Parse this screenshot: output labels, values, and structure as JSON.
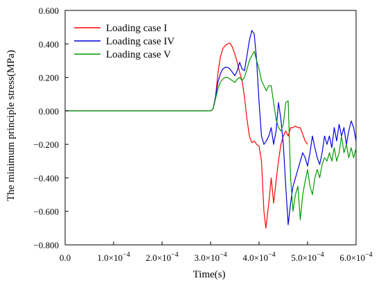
{
  "chart_data": {
    "type": "line",
    "title": "",
    "xlabel": "Time(s)",
    "ylabel": "The minimum principle stress(MPa)",
    "xlim": [
      0,
      0.0006
    ],
    "ylim": [
      -0.8,
      0.6
    ],
    "xticks": [
      {
        "value": 0.0,
        "label": "0.0"
      },
      {
        "value": 0.0001,
        "label": "1.0×10",
        "exp": "−4"
      },
      {
        "value": 0.0002,
        "label": "2.0×10",
        "exp": "−4"
      },
      {
        "value": 0.0003,
        "label": "3.0×10",
        "exp": "−4"
      },
      {
        "value": 0.0004,
        "label": "4.0×10",
        "exp": "−4"
      },
      {
        "value": 0.0005,
        "label": "5.0×10",
        "exp": "−4"
      },
      {
        "value": 0.0006,
        "label": "6.0×10",
        "exp": "−4"
      }
    ],
    "yticks": [
      {
        "value": 0.6,
        "label": "0.600"
      },
      {
        "value": 0.4,
        "label": "0.400"
      },
      {
        "value": 0.2,
        "label": "0.200"
      },
      {
        "value": 0.0,
        "label": "0.000"
      },
      {
        "value": -0.2,
        "label": "−0.200"
      },
      {
        "value": -0.4,
        "label": "−0.400"
      },
      {
        "value": -0.6,
        "label": "−0.600"
      },
      {
        "value": -0.8,
        "label": "−0.800"
      }
    ],
    "grid": false,
    "legend": "top-left",
    "series": [
      {
        "name": "Loading case I",
        "color": "#ff0000",
        "points": [
          [
            0.0,
            0.0
          ],
          [
            0.0003,
            0.0
          ],
          [
            0.000305,
            0.01
          ],
          [
            0.00031,
            0.08
          ],
          [
            0.000315,
            0.22
          ],
          [
            0.00032,
            0.32
          ],
          [
            0.000325,
            0.37
          ],
          [
            0.00033,
            0.39
          ],
          [
            0.000335,
            0.4
          ],
          [
            0.00034,
            0.405
          ],
          [
            0.000345,
            0.38
          ],
          [
            0.00035,
            0.34
          ],
          [
            0.000355,
            0.29
          ],
          [
            0.00036,
            0.23
          ],
          [
            0.000365,
            0.18
          ],
          [
            0.00037,
            0.08
          ],
          [
            0.000375,
            -0.05
          ],
          [
            0.00038,
            -0.15
          ],
          [
            0.000385,
            -0.19
          ],
          [
            0.00039,
            -0.18
          ],
          [
            0.000395,
            -0.2
          ],
          [
            0.0004,
            -0.21
          ],
          [
            0.000405,
            -0.3
          ],
          [
            0.00041,
            -0.6
          ],
          [
            0.000414,
            -0.7
          ],
          [
            0.00042,
            -0.55
          ],
          [
            0.000425,
            -0.4
          ],
          [
            0.00043,
            -0.55
          ],
          [
            0.000435,
            -0.42
          ],
          [
            0.00044,
            -0.3
          ],
          [
            0.000445,
            -0.2
          ],
          [
            0.00045,
            -0.15
          ],
          [
            0.000455,
            -0.12
          ],
          [
            0.00046,
            -0.15
          ],
          [
            0.000465,
            -0.1
          ],
          [
            0.00047,
            -0.1
          ],
          [
            0.000475,
            -0.09
          ],
          [
            0.00048,
            -0.1
          ],
          [
            0.000485,
            -0.1
          ],
          [
            0.00049,
            -0.14
          ],
          [
            0.000495,
            -0.18
          ],
          [
            0.0005,
            -0.2
          ]
        ]
      },
      {
        "name": "Loading case IV",
        "color": "#0000dd",
        "points": [
          [
            0.0,
            0.0
          ],
          [
            0.0003,
            0.0
          ],
          [
            0.000305,
            0.01
          ],
          [
            0.00031,
            0.08
          ],
          [
            0.000315,
            0.17
          ],
          [
            0.00032,
            0.22
          ],
          [
            0.000325,
            0.25
          ],
          [
            0.00033,
            0.26
          ],
          [
            0.000335,
            0.26
          ],
          [
            0.00034,
            0.25
          ],
          [
            0.000345,
            0.23
          ],
          [
            0.00035,
            0.21
          ],
          [
            0.000355,
            0.24
          ],
          [
            0.00036,
            0.29
          ],
          [
            0.000365,
            0.25
          ],
          [
            0.00037,
            0.24
          ],
          [
            0.000375,
            0.33
          ],
          [
            0.00038,
            0.42
          ],
          [
            0.000385,
            0.48
          ],
          [
            0.00039,
            0.46
          ],
          [
            0.000395,
            0.3
          ],
          [
            0.0004,
            0.05
          ],
          [
            0.000405,
            -0.15
          ],
          [
            0.00041,
            -0.2
          ],
          [
            0.000415,
            -0.18
          ],
          [
            0.00042,
            -0.15
          ],
          [
            0.000425,
            -0.1
          ],
          [
            0.00043,
            -0.2
          ],
          [
            0.000435,
            -0.12
          ],
          [
            0.00044,
            0.05
          ],
          [
            0.000445,
            -0.05
          ],
          [
            0.00045,
            -0.2
          ],
          [
            0.000455,
            -0.45
          ],
          [
            0.00046,
            -0.68
          ],
          [
            0.000465,
            -0.55
          ],
          [
            0.00047,
            -0.45
          ],
          [
            0.000475,
            -0.4
          ],
          [
            0.00048,
            -0.35
          ],
          [
            0.000485,
            -0.3
          ],
          [
            0.00049,
            -0.25
          ],
          [
            0.000495,
            -0.28
          ],
          [
            0.0005,
            -0.33
          ],
          [
            0.000505,
            -0.25
          ],
          [
            0.00051,
            -0.15
          ],
          [
            0.000515,
            -0.22
          ],
          [
            0.00052,
            -0.28
          ],
          [
            0.000525,
            -0.32
          ],
          [
            0.00053,
            -0.25
          ],
          [
            0.000535,
            -0.15
          ],
          [
            0.00054,
            -0.2
          ],
          [
            0.000545,
            -0.15
          ],
          [
            0.00055,
            -0.22
          ],
          [
            0.000555,
            -0.1
          ],
          [
            0.00056,
            -0.18
          ],
          [
            0.000565,
            -0.08
          ],
          [
            0.00057,
            -0.15
          ],
          [
            0.000575,
            -0.1
          ],
          [
            0.00058,
            -0.2
          ],
          [
            0.000585,
            -0.12
          ],
          [
            0.00059,
            -0.06
          ],
          [
            0.000595,
            -0.1
          ],
          [
            0.0006,
            -0.18
          ]
        ]
      },
      {
        "name": "Loading case V",
        "color": "#009900",
        "points": [
          [
            0.0,
            0.0
          ],
          [
            0.0003,
            0.0
          ],
          [
            0.000305,
            0.01
          ],
          [
            0.00031,
            0.07
          ],
          [
            0.000315,
            0.13
          ],
          [
            0.00032,
            0.17
          ],
          [
            0.000325,
            0.19
          ],
          [
            0.00033,
            0.2
          ],
          [
            0.000335,
            0.2
          ],
          [
            0.00034,
            0.19
          ],
          [
            0.000345,
            0.18
          ],
          [
            0.00035,
            0.17
          ],
          [
            0.000355,
            0.19
          ],
          [
            0.00036,
            0.2
          ],
          [
            0.000365,
            0.18
          ],
          [
            0.00037,
            0.2
          ],
          [
            0.000375,
            0.25
          ],
          [
            0.00038,
            0.3
          ],
          [
            0.000385,
            0.33
          ],
          [
            0.00039,
            0.355
          ],
          [
            0.000395,
            0.3
          ],
          [
            0.0004,
            0.25
          ],
          [
            0.000405,
            0.18
          ],
          [
            0.00041,
            0.15
          ],
          [
            0.000415,
            0.12
          ],
          [
            0.00042,
            0.15
          ],
          [
            0.000425,
            0.15
          ],
          [
            0.00043,
            0.05
          ],
          [
            0.000435,
            -0.05
          ],
          [
            0.00044,
            -0.1
          ],
          [
            0.000445,
            -0.12
          ],
          [
            0.00045,
            -0.08
          ],
          [
            0.000455,
            0.05
          ],
          [
            0.00046,
            0.06
          ],
          [
            0.000465,
            -0.4
          ],
          [
            0.00047,
            -0.6
          ],
          [
            0.000475,
            -0.5
          ],
          [
            0.00048,
            -0.45
          ],
          [
            0.000485,
            -0.65
          ],
          [
            0.00049,
            -0.5
          ],
          [
            0.000495,
            -0.42
          ],
          [
            0.0005,
            -0.35
          ],
          [
            0.000505,
            -0.45
          ],
          [
            0.00051,
            -0.5
          ],
          [
            0.000515,
            -0.4
          ],
          [
            0.00052,
            -0.35
          ],
          [
            0.000525,
            -0.4
          ],
          [
            0.00053,
            -0.32
          ],
          [
            0.000535,
            -0.28
          ],
          [
            0.00054,
            -0.3
          ],
          [
            0.000545,
            -0.25
          ],
          [
            0.00055,
            -0.3
          ],
          [
            0.000555,
            -0.22
          ],
          [
            0.00056,
            -0.3
          ],
          [
            0.000565,
            -0.25
          ],
          [
            0.00057,
            -0.15
          ],
          [
            0.000575,
            -0.25
          ],
          [
            0.00058,
            -0.2
          ],
          [
            0.000585,
            -0.28
          ],
          [
            0.00059,
            -0.22
          ],
          [
            0.000595,
            -0.28
          ],
          [
            0.0006,
            -0.22
          ]
        ]
      }
    ]
  }
}
